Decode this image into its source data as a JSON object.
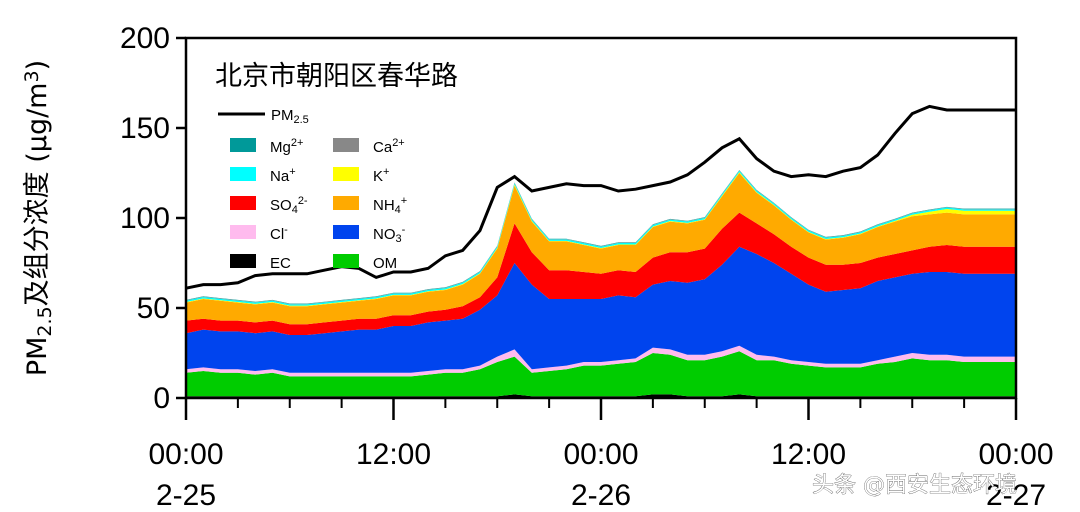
{
  "watermark": "头条 @西安生态环境",
  "chart_data": {
    "type": "area",
    "title": "北京市朝阳区春华路",
    "ylabel_main": "PM",
    "ylabel_sub": "2.5",
    "ylabel_rest": "及组分浓度 (μg/m",
    "ylabel_sup": "3",
    "ylabel_close": ")",
    "ylim": [
      0,
      200
    ],
    "yticks": [
      "0",
      "50",
      "100",
      "150",
      "200"
    ],
    "xlim": [
      0,
      48
    ],
    "xticks": [
      {
        "x": 0,
        "time": "00:00",
        "date": "2-25"
      },
      {
        "x": 12,
        "time": "12:00",
        "date": ""
      },
      {
        "x": 24,
        "time": "00:00",
        "date": "2-26"
      },
      {
        "x": 36,
        "time": "12:00",
        "date": ""
      },
      {
        "x": 48,
        "time": "00:00",
        "date": "2-27"
      }
    ],
    "x": [
      0,
      1,
      2,
      3,
      4,
      5,
      6,
      7,
      8,
      9,
      10,
      11,
      12,
      13,
      14,
      15,
      16,
      17,
      18,
      19,
      20,
      21,
      22,
      23,
      24,
      25,
      26,
      27,
      28,
      29,
      30,
      31,
      32,
      33,
      34,
      35,
      36,
      37,
      38,
      39,
      40,
      41,
      42,
      43,
      44,
      45,
      46,
      47,
      48
    ],
    "pm25": {
      "name": "PM",
      "sub": "2.5",
      "color": "#000000",
      "values": [
        61,
        63,
        63,
        64,
        68,
        69,
        69,
        69,
        71,
        73,
        72,
        67,
        70,
        70,
        72,
        79,
        82,
        93,
        117,
        123,
        115,
        117,
        119,
        118,
        118,
        115,
        116,
        118,
        120,
        124,
        131,
        139,
        144,
        133,
        126,
        123,
        124,
        123,
        126,
        128,
        135,
        147,
        158,
        162,
        160,
        160,
        160,
        160,
        160
      ]
    },
    "series": [
      {
        "name": "EC",
        "sup": "",
        "sub": "",
        "color": "#000000",
        "values": [
          1,
          1,
          1,
          1,
          1,
          1,
          1,
          1,
          1,
          1,
          1,
          1,
          1,
          1,
          1,
          1,
          1,
          1,
          1,
          2,
          1,
          1,
          1,
          1,
          1,
          1,
          1,
          2,
          2,
          1,
          1,
          1,
          2,
          1,
          1,
          1,
          1,
          1,
          1,
          1,
          1,
          1,
          1,
          1,
          1,
          1,
          1,
          1,
          1
        ]
      },
      {
        "name": "OM",
        "sup": "",
        "sub": "",
        "color": "#00cc00",
        "values": [
          13,
          14,
          13,
          13,
          12,
          13,
          11,
          11,
          11,
          11,
          11,
          11,
          11,
          11,
          12,
          13,
          13,
          15,
          19,
          21,
          13,
          14,
          15,
          17,
          17,
          18,
          19,
          23,
          22,
          20,
          20,
          22,
          24,
          20,
          20,
          18,
          17,
          16,
          16,
          16,
          18,
          19,
          21,
          20,
          20,
          19,
          19,
          19,
          19
        ]
      },
      {
        "name": "Cl",
        "sup": "-",
        "sub": "",
        "color": "#ffbbee",
        "values": [
          2,
          2,
          2,
          2,
          2,
          2,
          2,
          2,
          2,
          2,
          2,
          2,
          2,
          2,
          2,
          2,
          2,
          2,
          3,
          4,
          2,
          2,
          2,
          2,
          2,
          2,
          2,
          3,
          3,
          3,
          3,
          3,
          3,
          3,
          2,
          2,
          2,
          2,
          2,
          2,
          2,
          3,
          3,
          3,
          3,
          3,
          3,
          3,
          3
        ]
      },
      {
        "name": "NO",
        "sup": "-",
        "sub": "3",
        "color": "#0044ee",
        "values": [
          20,
          21,
          21,
          21,
          21,
          21,
          21,
          21,
          22,
          23,
          24,
          24,
          26,
          26,
          27,
          27,
          28,
          31,
          34,
          48,
          47,
          38,
          37,
          35,
          35,
          36,
          34,
          35,
          38,
          40,
          42,
          48,
          55,
          56,
          52,
          48,
          43,
          40,
          41,
          42,
          44,
          44,
          44,
          46,
          46,
          46,
          46,
          46,
          46
        ]
      },
      {
        "name": "SO",
        "sup": "2-",
        "sub": "4",
        "color": "#ff0000",
        "values": [
          7,
          6,
          6,
          6,
          6,
          6,
          6,
          6,
          6,
          6,
          6,
          6,
          6,
          6,
          6,
          6,
          7,
          7,
          10,
          22,
          18,
          16,
          16,
          15,
          14,
          14,
          14,
          15,
          16,
          17,
          17,
          20,
          19,
          17,
          16,
          15,
          15,
          15,
          14,
          14,
          13,
          13,
          13,
          14,
          15,
          15,
          15,
          15,
          15
        ]
      },
      {
        "name": "NH",
        "sup": "+",
        "sub": "4",
        "color": "#ffaa00",
        "values": [
          10,
          11,
          11,
          10,
          10,
          10,
          10,
          10,
          10,
          10,
          10,
          11,
          11,
          11,
          11,
          11,
          12,
          13,
          16,
          21,
          17,
          16,
          16,
          15,
          14,
          14,
          15,
          17,
          17,
          16,
          16,
          18,
          22,
          17,
          16,
          15,
          14,
          14,
          15,
          16,
          17,
          18,
          19,
          18,
          18,
          18,
          18,
          18,
          18
        ]
      },
      {
        "name": "K",
        "sup": "+",
        "sub": "",
        "color": "#ffff00",
        "values": [
          0.3,
          0.3,
          0.3,
          0.3,
          0.3,
          0.3,
          0.3,
          0.3,
          0.3,
          0.3,
          0.3,
          0.3,
          0.3,
          0.3,
          0.3,
          0.3,
          0.3,
          0.3,
          0.4,
          0.6,
          0.4,
          0.3,
          0.3,
          0.3,
          0.3,
          0.3,
          0.3,
          0.3,
          0.3,
          0.3,
          0.3,
          0.4,
          0.5,
          0.4,
          0.3,
          0.3,
          0.3,
          0.3,
          0.3,
          0.3,
          0.3,
          0.4,
          0.8,
          1.5,
          2.0,
          2.0,
          2.0,
          2.0,
          2.0
        ]
      },
      {
        "name": "Na",
        "sup": "+",
        "sub": "",
        "color": "#00ffff",
        "values": [
          0.8,
          0.8,
          0.8,
          0.8,
          0.8,
          0.8,
          0.8,
          0.8,
          0.8,
          0.8,
          0.8,
          0.8,
          0.8,
          0.8,
          0.8,
          0.8,
          0.8,
          0.8,
          0.8,
          0.8,
          0.8,
          0.8,
          0.8,
          0.8,
          0.8,
          0.8,
          0.8,
          0.8,
          0.8,
          0.8,
          0.8,
          0.8,
          0.8,
          0.8,
          0.8,
          0.8,
          0.8,
          0.8,
          0.8,
          0.8,
          0.8,
          0.8,
          0.8,
          0.8,
          0.8,
          0.8,
          0.8,
          0.8,
          0.8
        ]
      },
      {
        "name": "Ca",
        "sup": "2+",
        "sub": "",
        "color": "#888888",
        "values": [
          0.2,
          0.2,
          0.2,
          0.2,
          0.2,
          0.2,
          0.2,
          0.2,
          0.2,
          0.2,
          0.2,
          0.2,
          0.2,
          0.2,
          0.2,
          0.2,
          0.2,
          0.2,
          0.2,
          0.2,
          0.2,
          0.2,
          0.2,
          0.2,
          0.2,
          0.2,
          0.2,
          0.2,
          0.2,
          0.2,
          0.2,
          0.2,
          0.2,
          0.2,
          0.2,
          0.2,
          0.2,
          0.2,
          0.2,
          0.2,
          0.2,
          0.2,
          0.2,
          0.2,
          0.2,
          0.2,
          0.2,
          0.2,
          0.2
        ]
      },
      {
        "name": "Mg",
        "sup": "2+",
        "sub": "",
        "color": "#009999",
        "values": [
          0.2,
          0.2,
          0.2,
          0.2,
          0.2,
          0.2,
          0.2,
          0.2,
          0.2,
          0.2,
          0.2,
          0.2,
          0.2,
          0.2,
          0.2,
          0.2,
          0.2,
          0.2,
          0.2,
          0.2,
          0.2,
          0.2,
          0.2,
          0.2,
          0.2,
          0.2,
          0.2,
          0.2,
          0.2,
          0.2,
          0.2,
          0.2,
          0.2,
          0.2,
          0.2,
          0.2,
          0.2,
          0.2,
          0.2,
          0.2,
          0.2,
          0.2,
          0.2,
          0.2,
          0.2,
          0.2,
          0.2,
          0.2,
          0.2
        ]
      }
    ],
    "legend_order": [
      "Mg",
      "Ca",
      "Na",
      "K",
      "SO",
      "NH",
      "Cl",
      "NO",
      "EC",
      "OM"
    ],
    "legend_position": "top-left",
    "grid": false
  }
}
